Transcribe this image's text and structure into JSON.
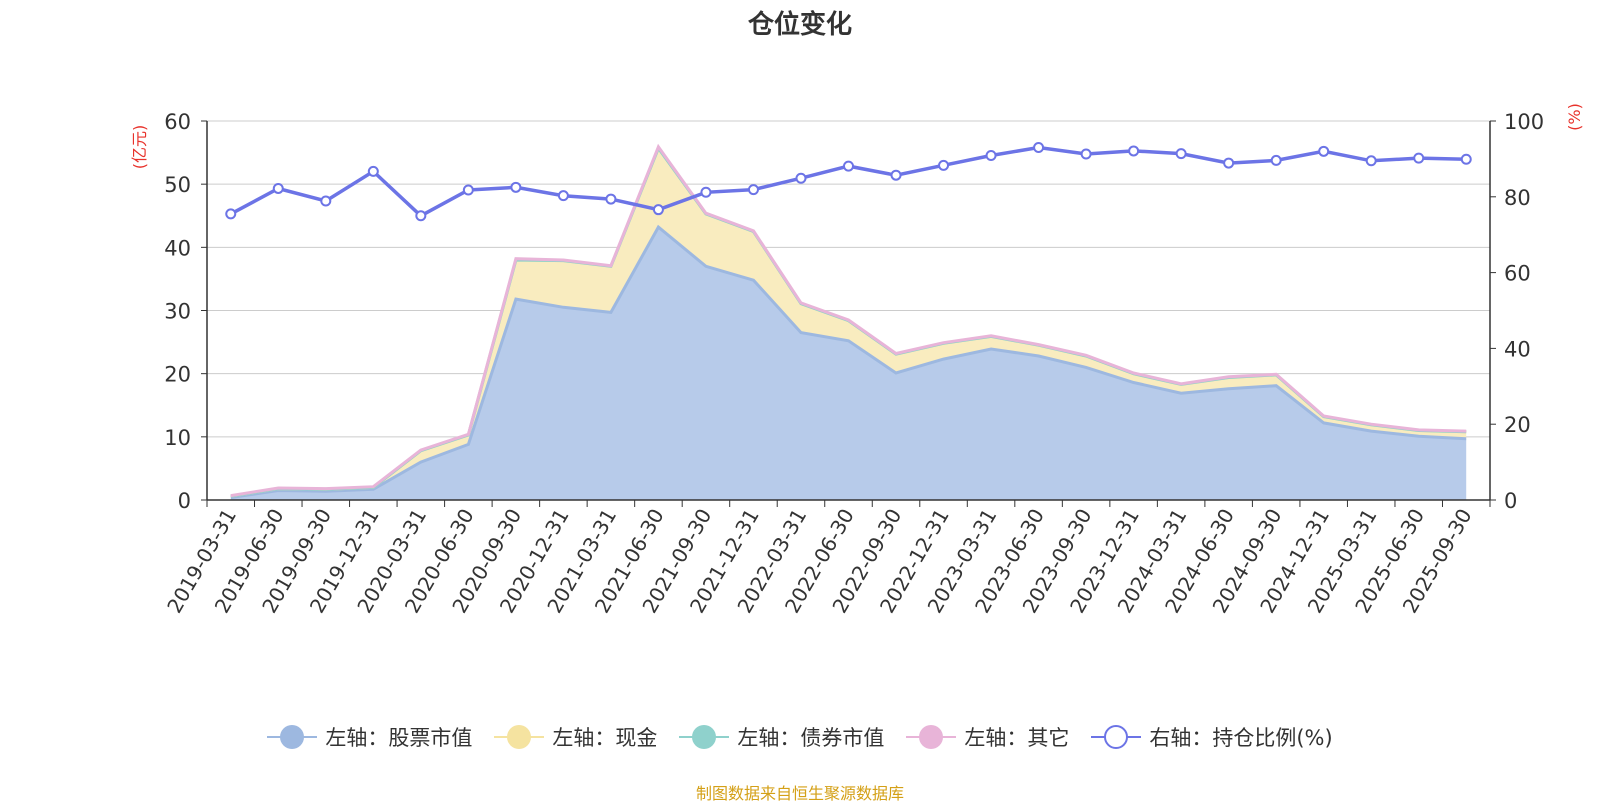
{
  "chart_data": {
    "type": "area",
    "title": "仓位变化",
    "left_unit": "(亿元)",
    "right_unit": "(%)",
    "ylim_left": [
      0,
      60
    ],
    "yticks_left": [
      0,
      10,
      20,
      30,
      40,
      50,
      60
    ],
    "ylim_right": [
      0,
      100
    ],
    "yticks_right": [
      0,
      20,
      40,
      60,
      80,
      100
    ],
    "grid": true,
    "legend_position": "bottom",
    "categories": [
      "2019-03-31",
      "2019-06-30",
      "2019-09-30",
      "2019-12-31",
      "2020-03-31",
      "2020-06-30",
      "2020-09-30",
      "2020-12-31",
      "2021-03-31",
      "2021-06-30",
      "2021-09-30",
      "2021-12-31",
      "2022-03-31",
      "2022-06-30",
      "2022-09-30",
      "2022-12-31",
      "2023-03-31",
      "2023-06-30",
      "2023-09-30",
      "2023-12-31",
      "2024-03-31",
      "2024-06-30",
      "2024-09-30",
      "2024-12-31",
      "2025-03-31",
      "2025-06-30",
      "2025-09-30"
    ],
    "series": [
      {
        "name": "左轴：股票市值",
        "axis": "left",
        "color": "#9db8e0",
        "fill": "#b7cbea",
        "values": [
          0.4,
          1.5,
          1.4,
          1.7,
          6.0,
          8.8,
          31.8,
          30.5,
          29.7,
          43.2,
          37.0,
          34.8,
          26.5,
          25.2,
          20.1,
          22.3,
          23.9,
          22.8,
          21.0,
          18.6,
          16.9,
          17.6,
          18.1,
          12.2,
          10.9,
          10.1,
          9.7
        ]
      },
      {
        "name": "左轴：现金",
        "axis": "left",
        "color": "#f5e3a0",
        "fill": "#f9ecbf",
        "values": [
          0.2,
          0.3,
          0.3,
          0.3,
          1.8,
          1.5,
          6.2,
          7.4,
          7.3,
          12.5,
          8.3,
          7.7,
          4.6,
          3.2,
          3.0,
          2.5,
          2.0,
          1.7,
          1.8,
          1.4,
          1.4,
          1.8,
          1.7,
          1.0,
          1.0,
          0.9,
          1.1
        ]
      },
      {
        "name": "左轴：债券市值",
        "axis": "left",
        "color": "#8fd1cc",
        "fill": "#8fd1cc",
        "values": [
          0,
          0,
          0,
          0,
          0,
          0,
          0,
          0,
          0,
          0,
          0,
          0,
          0,
          0,
          0,
          0,
          0,
          0,
          0,
          0,
          0,
          0,
          0,
          0,
          0,
          0,
          0
        ]
      },
      {
        "name": "左轴：其它",
        "axis": "left",
        "color": "#e8b4d8",
        "fill": "#e8b4d8",
        "values": [
          0.1,
          0.1,
          0.1,
          0.1,
          0.1,
          0.1,
          0.2,
          0.1,
          0.1,
          0.2,
          0.1,
          0.1,
          0.1,
          0.1,
          0.1,
          0.1,
          0.1,
          0.1,
          0.1,
          0.1,
          0.1,
          0.1,
          0.1,
          0.1,
          0.1,
          0.1,
          0.1
        ]
      },
      {
        "name": "右轴：持仓比例(%)",
        "axis": "right",
        "color": "#6c74e6",
        "fill": "#ffffff",
        "values": [
          75.5,
          82.2,
          78.9,
          86.7,
          75.0,
          81.8,
          82.5,
          80.3,
          79.4,
          76.6,
          81.2,
          81.9,
          84.9,
          88.1,
          85.7,
          88.3,
          90.9,
          93.0,
          91.3,
          92.1,
          91.4,
          88.9,
          89.6,
          92.0,
          89.5,
          90.2,
          89.9
        ]
      }
    ]
  },
  "source_text": "制图数据来自恒生聚源数据库"
}
